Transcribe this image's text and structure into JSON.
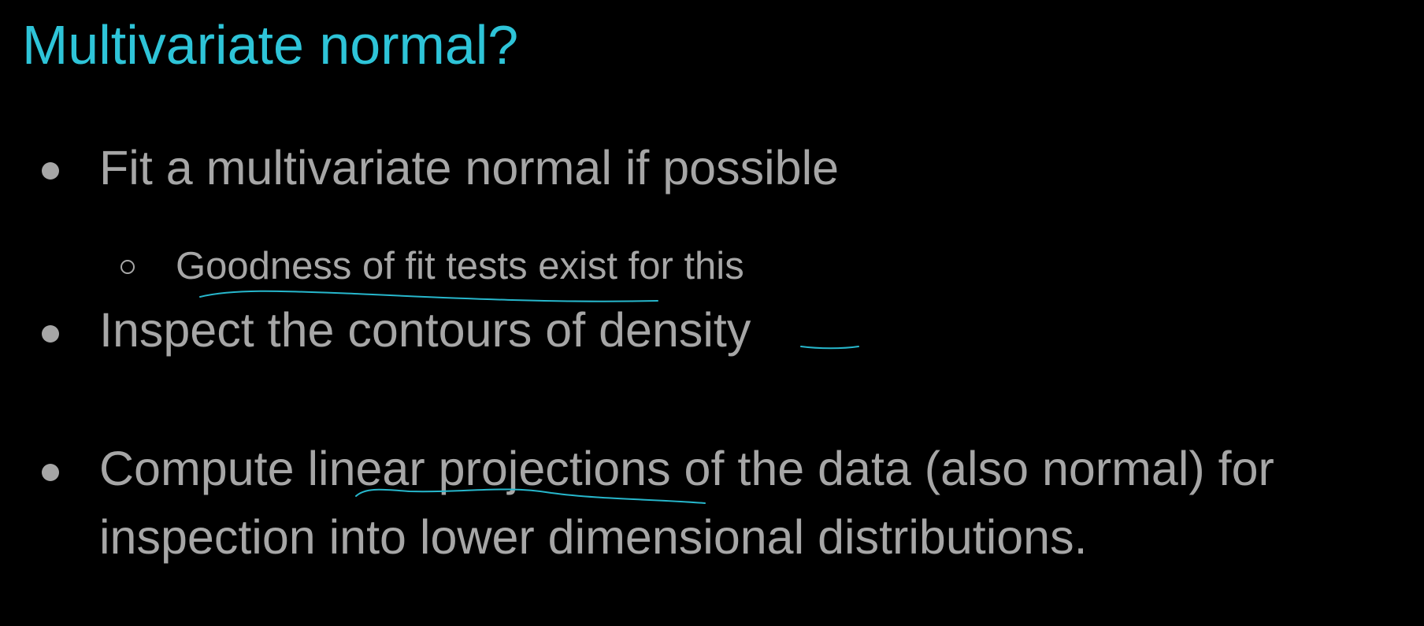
{
  "slide": {
    "title": "Multivariate normal?",
    "bullets": [
      {
        "text": "Fit a multivariate normal if possible"
      },
      {
        "text": "Goodness of fit tests exist for this"
      },
      {
        "text": "Inspect the contours of density"
      },
      {
        "text": "Compute linear projections of the data (also normal) for"
      },
      {
        "text": "inspection into lower dimensional distributions."
      }
    ]
  },
  "colors": {
    "background": "#000000",
    "title": "#2ec4d8",
    "body_text": "#a6a6a6",
    "ink": "#27b7cc"
  }
}
